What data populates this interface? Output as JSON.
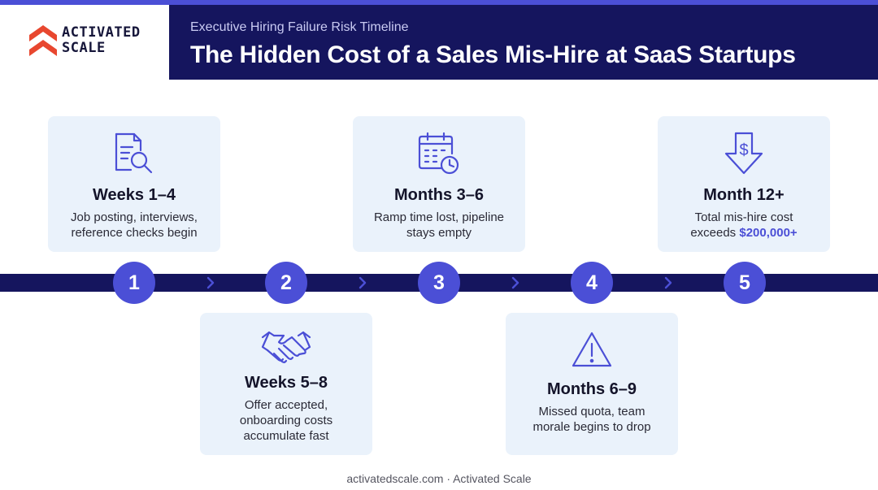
{
  "brand": {
    "name_line1": "ACTIVATED",
    "name_line2": "SCALE",
    "colors": {
      "accent": "#4b4fd6",
      "navy": "#15155e",
      "logo_red": "#e8472f",
      "card_bg": "#eaf2fb"
    }
  },
  "header": {
    "subtitle": "Executive Hiring Failure Risk Timeline",
    "title": "The Hidden Cost of a Sales Mis-Hire at SaaS Startups"
  },
  "timeline": {
    "steps": [
      {
        "number": "1",
        "icon": "document-search-icon",
        "title": "Weeks 1–4",
        "desc_line1": "Job posting, interviews,",
        "desc_line2": "reference checks begin"
      },
      {
        "number": "2",
        "icon": "handshake-icon",
        "title": "Weeks 5–8",
        "desc_line1": "Offer accepted,",
        "desc_line2": "onboarding costs",
        "desc_line3": "accumulate fast"
      },
      {
        "number": "3",
        "icon": "calendar-clock-icon",
        "title": "Months 3–6",
        "desc_line1": "Ramp time lost, pipeline",
        "desc_line2": "stays empty"
      },
      {
        "number": "4",
        "icon": "warning-triangle-icon",
        "title": "Months 6–9",
        "desc_line1": "Missed quota, team",
        "desc_line2": "morale begins to drop"
      },
      {
        "number": "5",
        "icon": "dollar-down-arrow-icon",
        "title": "Month 12+",
        "desc_line1": "Total mis-hire cost",
        "desc_line2_prefix": "exceeds ",
        "desc_line2_highlight": "$200,000+"
      }
    ]
  },
  "footer": {
    "text": "activatedscale.com · Activated Scale"
  }
}
